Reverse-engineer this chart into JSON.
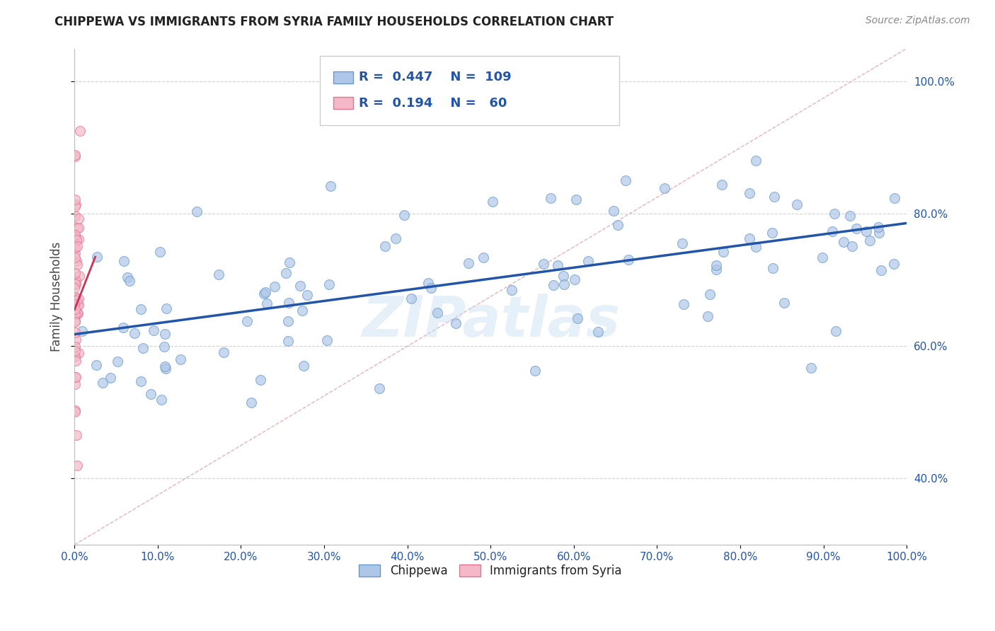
{
  "title": "CHIPPEWA VS IMMIGRANTS FROM SYRIA FAMILY HOUSEHOLDS CORRELATION CHART",
  "source": "Source: ZipAtlas.com",
  "ylabel": "Family Households",
  "watermark": "ZIPatlas",
  "legend_blue_r": "0.447",
  "legend_blue_n": "109",
  "legend_pink_r": "0.194",
  "legend_pink_n": "60",
  "blue_scatter_color": "#aec6e8",
  "blue_edge_color": "#6699cc",
  "pink_scatter_color": "#f4b8c8",
  "pink_edge_color": "#e87090",
  "trend_blue_color": "#2255aa",
  "trend_pink_color": "#cc3355",
  "diag_color": "#e0a0a8",
  "grid_color": "#cccccc",
  "background": "#ffffff",
  "title_color": "#222222",
  "source_color": "#888888",
  "legend_text_color": "#2255aa",
  "axis_label_color": "#2255aa",
  "xlim": [
    0.0,
    1.0
  ],
  "ylim": [
    0.3,
    1.05
  ],
  "xticks": [
    0.0,
    0.1,
    0.2,
    0.3,
    0.4,
    0.5,
    0.6,
    0.7,
    0.8,
    0.9,
    1.0
  ],
  "yticks": [
    0.4,
    0.6,
    0.8,
    1.0
  ],
  "blue_trend_x0": 0.0,
  "blue_trend_y0": 0.618,
  "blue_trend_x1": 1.0,
  "blue_trend_y1": 0.786,
  "pink_trend_x0": 0.0,
  "pink_trend_y0": 0.655,
  "pink_trend_x1": 0.025,
  "pink_trend_y1": 0.735
}
